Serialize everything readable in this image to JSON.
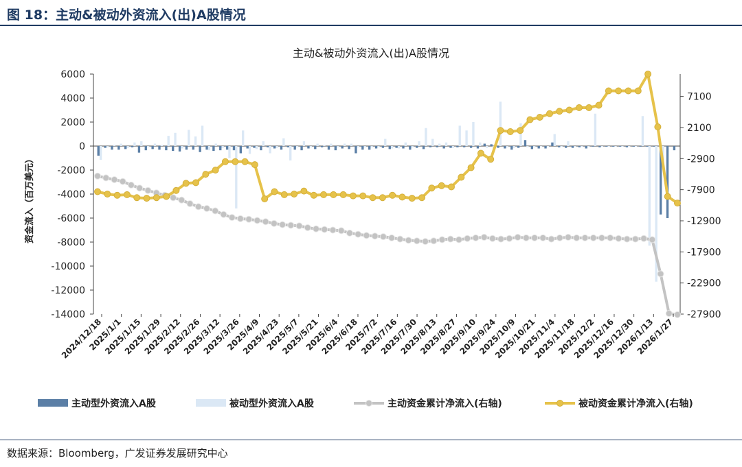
{
  "header": {
    "figure_title": "图 18：主动&被动外资流入(出)A股情况"
  },
  "footer": {
    "source": "数据来源：Bloomberg，广发证券发展研究中心"
  },
  "colors": {
    "active_bar": "#5b7fa6",
    "passive_bar": "#dbe8f5",
    "active_cum": "#c3c3c3",
    "passive_cum": "#e6c24a",
    "header": "#1f3b63"
  },
  "chart_data": {
    "type": "bar+line",
    "title": "主动&被动外资流入(出)A股情况",
    "ylabel": "资金流入（百万美元）",
    "ylim": [
      -14000,
      6000
    ],
    "yticks": [
      6000,
      4000,
      2000,
      0,
      -2000,
      -4000,
      -6000,
      -8000,
      -10000,
      -12000,
      -14000
    ],
    "y2lim": [
      -27900,
      10700
    ],
    "y2ticks": [
      7100,
      2100,
      -2900,
      -7900,
      -12900,
      -17900,
      -22900,
      -27900
    ],
    "xtick_labels": [
      "2024/12/18",
      "2025/1/1",
      "2025/1/15",
      "2025/1/29",
      "2025/2/12",
      "2025/2/26",
      "2025/3/12",
      "2025/3/26",
      "2025/4/9",
      "2025/4/23",
      "2025/5/7",
      "2025/5/21",
      "2025/6/4",
      "2025/6/18",
      "2025/7/2",
      "2025/7/16",
      "2025/7/30",
      "2025/8/13",
      "2025/8/27",
      "2025/9/10",
      "2025/9/24",
      "2025/10/9",
      "2025/10/21",
      "2025/11/4",
      "2025/11/18",
      "2025/12/2",
      "2025/12/16",
      "2025/12/30",
      "2026/1/13",
      "2026/1/27"
    ],
    "legend_position": "bottom",
    "series": [
      {
        "name": "主动型外资流入A股",
        "type": "bar",
        "axis": "left",
        "values": [
          -800,
          -150,
          -300,
          -300,
          -250,
          -100,
          -550,
          -350,
          -250,
          -300,
          -350,
          -400,
          -450,
          -300,
          -300,
          -500,
          -300,
          -400,
          -350,
          -300,
          -350,
          -600,
          -200,
          -150,
          -350,
          -100,
          -200,
          -300,
          -100,
          -300,
          -350,
          -200,
          -250,
          -100,
          -300,
          -350,
          -200,
          -250,
          -600,
          -300,
          -300,
          -200,
          -150,
          -250,
          -150,
          -200,
          -300,
          -150,
          -250,
          -100,
          -100,
          -200,
          -150,
          -100,
          -100,
          -150,
          -200,
          200,
          150,
          -150,
          -200,
          -300,
          -150,
          500,
          -250,
          -200,
          -200,
          300,
          -100,
          -150,
          -150,
          -100,
          -200,
          -50,
          -100,
          -50,
          -50,
          -50,
          -100,
          -50,
          -50,
          -50,
          -50,
          -5700,
          -6000,
          -350
        ]
      },
      {
        "name": "被动型外资流入A股",
        "type": "bar",
        "axis": "left",
        "values": [
          -1150,
          -100,
          100,
          200,
          -150,
          300,
          400,
          -100,
          200,
          100,
          850,
          1100,
          -200,
          1350,
          800,
          1700,
          -350,
          200,
          -150,
          -1000,
          -5200,
          1300,
          -650,
          -250,
          400,
          -600,
          -150,
          650,
          -1200,
          -100,
          400,
          -100,
          200,
          100,
          200,
          -100,
          200,
          200,
          -100,
          -100,
          -100,
          -100,
          600,
          -200,
          -200,
          300,
          -100,
          400,
          1500,
          600,
          200,
          300,
          -150,
          1700,
          1300,
          2000,
          300,
          -150,
          -200,
          3700,
          -100,
          -150,
          1900,
          -100,
          -100,
          -50,
          -50,
          1000,
          -50,
          400,
          -50,
          -50,
          -50,
          2700,
          -50,
          -50,
          -50,
          -50,
          -50,
          -50,
          2500,
          -8300,
          -11300,
          -1200
        ]
      },
      {
        "name": "主动资金累计净流入(右轴)",
        "type": "line",
        "axis": "right",
        "values": [
          -2500,
          -2650,
          -2800,
          -2950,
          -3250,
          -3500,
          -3700,
          -3900,
          -4100,
          -4300,
          -4500,
          -4800,
          -5050,
          -5200,
          -5400,
          -5700,
          -5950,
          -6050,
          -6100,
          -6200,
          -6300,
          -6450,
          -6550,
          -6600,
          -6650,
          -6800,
          -6900,
          -6950,
          -7000,
          -7050,
          -7250,
          -7350,
          -7450,
          -7500,
          -7550,
          -7650,
          -7750,
          -7850,
          -7900,
          -7950,
          -7900,
          -7800,
          -7750,
          -7800,
          -7700,
          -7650,
          -7600,
          -7700,
          -7750,
          -7700,
          -7600,
          -7650,
          -7650,
          -7650,
          -7750,
          -7650,
          -7600,
          -7650,
          -7650,
          -7650,
          -7650,
          -7650,
          -7700,
          -7750,
          -7750,
          -7700,
          -7800,
          -10650,
          -13950,
          -14050
        ]
      },
      {
        "name": "被动资金累计净流入(右轴)",
        "type": "line",
        "axis": "right",
        "values": [
          -3800,
          -4000,
          -4100,
          -4050,
          -4300,
          -4350,
          -4300,
          -4200,
          -3700,
          -3100,
          -3050,
          -2350,
          -2000,
          -1300,
          -1300,
          -1300,
          -1550,
          -4400,
          -3800,
          -4050,
          -4000,
          -3750,
          -4100,
          -4050,
          -4050,
          -4050,
          -4150,
          -4150,
          -4300,
          -4300,
          -4100,
          -4250,
          -4350,
          -4300,
          -3500,
          -3300,
          -3400,
          -2600,
          -1800,
          -600,
          -1100,
          1300,
          1200,
          1300,
          2200,
          2400,
          2700,
          2900,
          3000,
          3200,
          3200,
          3400,
          4600,
          4600,
          4600,
          4600,
          6000,
          1600,
          -4200,
          -4750
        ]
      }
    ]
  },
  "legend": {
    "items": [
      {
        "label": "主动型外资流入A股"
      },
      {
        "label": "被动型外资流入A股"
      },
      {
        "label": "主动资金累计净流入(右轴)"
      },
      {
        "label": "被动资金累计净流入(右轴)"
      }
    ]
  }
}
